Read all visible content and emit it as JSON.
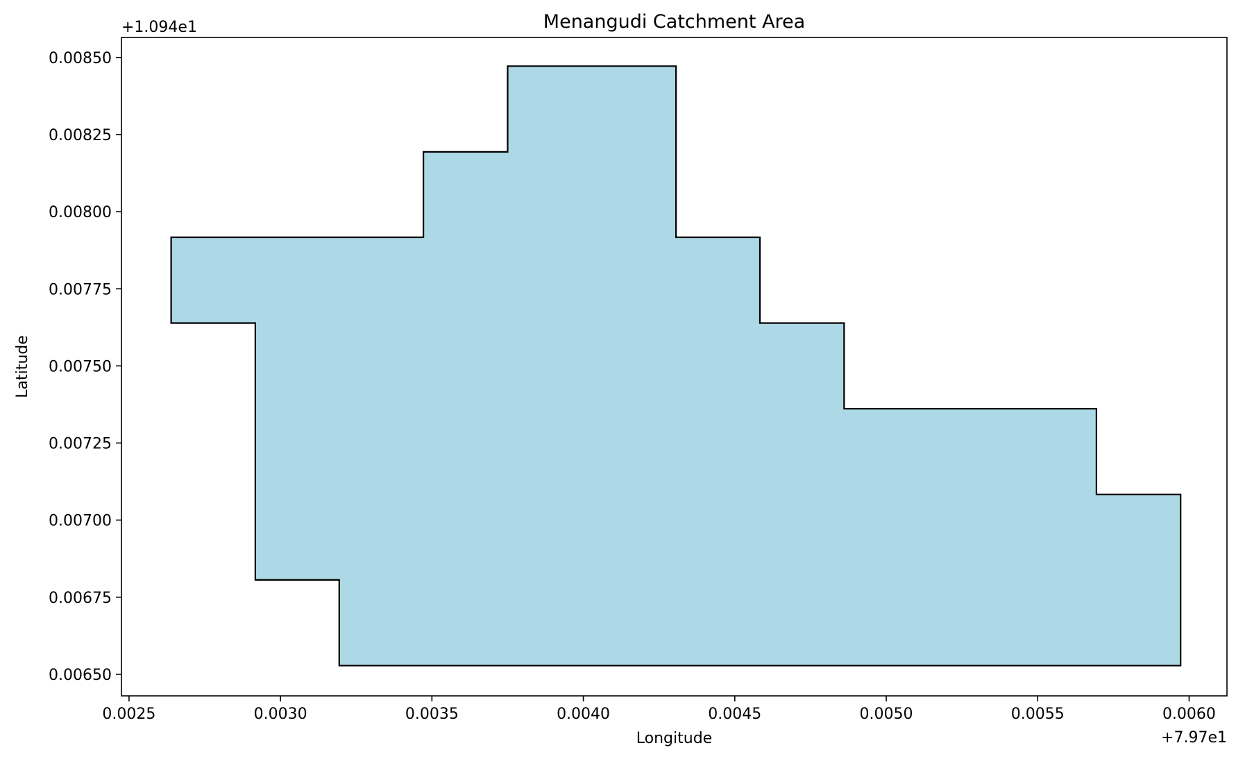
{
  "chart_data": {
    "type": "area",
    "title": "Menangudi Catchment Area",
    "xlabel": "Longitude",
    "ylabel": "Latitude",
    "x_offset_label": "+7.97e1",
    "y_offset_label": "+1.094e1",
    "xlim": [
      0.002475,
      0.006125
    ],
    "ylim": [
      0.00643,
      0.008565
    ],
    "x_ticks": [
      {
        "value": 0.0025,
        "label": "0.0025"
      },
      {
        "value": 0.003,
        "label": "0.0030"
      },
      {
        "value": 0.0035,
        "label": "0.0035"
      },
      {
        "value": 0.004,
        "label": "0.0040"
      },
      {
        "value": 0.0045,
        "label": "0.0045"
      },
      {
        "value": 0.005,
        "label": "0.0050"
      },
      {
        "value": 0.0055,
        "label": "0.0055"
      },
      {
        "value": 0.006,
        "label": "0.0060"
      }
    ],
    "y_ticks": [
      {
        "value": 0.0065,
        "label": "0.00650"
      },
      {
        "value": 0.00675,
        "label": "0.00675"
      },
      {
        "value": 0.007,
        "label": "0.00700"
      },
      {
        "value": 0.00725,
        "label": "0.00725"
      },
      {
        "value": 0.0075,
        "label": "0.00750"
      },
      {
        "value": 0.00775,
        "label": "0.00775"
      },
      {
        "value": 0.008,
        "label": "0.00800"
      },
      {
        "value": 0.00825,
        "label": "0.00825"
      },
      {
        "value": 0.0085,
        "label": "0.00850"
      }
    ],
    "grid": false,
    "fill_color": "#add8e6",
    "edge_color": "#000000",
    "polygon": [
      [
        0.002639,
        0.007917
      ],
      [
        0.003472,
        0.007917
      ],
      [
        0.003472,
        0.008194
      ],
      [
        0.00375,
        0.008194
      ],
      [
        0.00375,
        0.008472
      ],
      [
        0.004306,
        0.008472
      ],
      [
        0.004306,
        0.007917
      ],
      [
        0.004583,
        0.007917
      ],
      [
        0.004583,
        0.007639
      ],
      [
        0.004861,
        0.007639
      ],
      [
        0.004861,
        0.007361
      ],
      [
        0.005694,
        0.007361
      ],
      [
        0.005694,
        0.007083
      ],
      [
        0.005972,
        0.007083
      ],
      [
        0.005972,
        0.006528
      ],
      [
        0.003194,
        0.006528
      ],
      [
        0.003194,
        0.006806
      ],
      [
        0.002917,
        0.006806
      ],
      [
        0.002917,
        0.007639
      ],
      [
        0.002639,
        0.007639
      ]
    ]
  }
}
